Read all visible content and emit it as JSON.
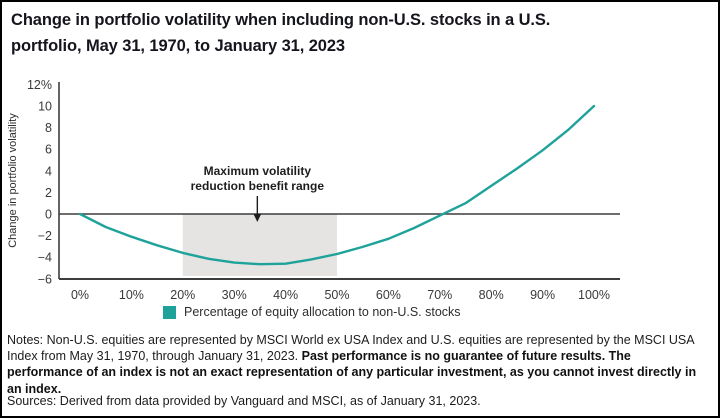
{
  "window": {
    "background": "#ffffff",
    "border_color": "#000000"
  },
  "title": {
    "line1": "Change in portfolio volatility when including non-U.S. stocks in a U.S.",
    "line2": "portfolio, May 31, 1970, to January 31, 2023"
  },
  "chart_data": {
    "type": "line",
    "title": "Change in portfolio volatility when including non-U.S. stocks in a U.S. portfolio, May 31, 1970, to January 31, 2023",
    "ylabel": "Change in portfolio volatility",
    "ylim": [
      -6,
      12
    ],
    "grid": false,
    "x_pct": [
      0,
      5,
      10,
      15,
      20,
      25,
      30,
      35,
      40,
      45,
      50,
      55,
      60,
      65,
      70,
      75,
      80,
      85,
      90,
      95,
      100
    ],
    "y_values": [
      0,
      -1.2,
      -2.1,
      -2.9,
      -3.6,
      -4.15,
      -4.5,
      -4.65,
      -4.6,
      -4.2,
      -3.7,
      -3.05,
      -2.3,
      -1.3,
      -0.15,
      1.0,
      2.6,
      4.2,
      5.9,
      7.8,
      10.0
    ],
    "x_tick_values": [
      0,
      10,
      20,
      30,
      40,
      50,
      60,
      70,
      80,
      90,
      100
    ],
    "x_tick_labels": [
      "0%",
      "10%",
      "20%",
      "30%",
      "40%",
      "50%",
      "60%",
      "70%",
      "80%",
      "90%",
      "100%"
    ],
    "y_tick_values": [
      12,
      10,
      8,
      6,
      4,
      2,
      0,
      -2,
      -4,
      -6
    ],
    "y_tick_labels": [
      "12%",
      "10",
      "8",
      "6",
      "4",
      "2",
      "0",
      "−2",
      "−4",
      "−6"
    ],
    "shaded_band": {
      "from_pct": 20,
      "to_pct": 50,
      "color": "#e5e4e2"
    },
    "annotation": {
      "line1": "Maximum volatility",
      "line2": "reduction benefit range",
      "arrow_x_pct": 34.5
    },
    "line_color": "#1fa29a",
    "axis_color": "#3d3d3d",
    "legend_position": "bottom",
    "legend_label": "Percentage of equity allocation to non-U.S. stocks"
  },
  "legend": {
    "label": "Percentage of equity allocation to non-U.S. stocks"
  },
  "notes": {
    "regular": "Notes: Non-U.S. equities are represented by MSCI World ex USA Index and U.S. equities are represented by the MSCI USA Index from May 31, 1970, through January 31, 2023. ",
    "emphasis": "Past performance is no guarantee of future results. The performance of an index is not an exact representation of any particular investment, as you cannot invest directly in an index."
  },
  "sources": {
    "text": "Sources: Derived from data provided by Vanguard and MSCI, as of January 31, 2023."
  }
}
